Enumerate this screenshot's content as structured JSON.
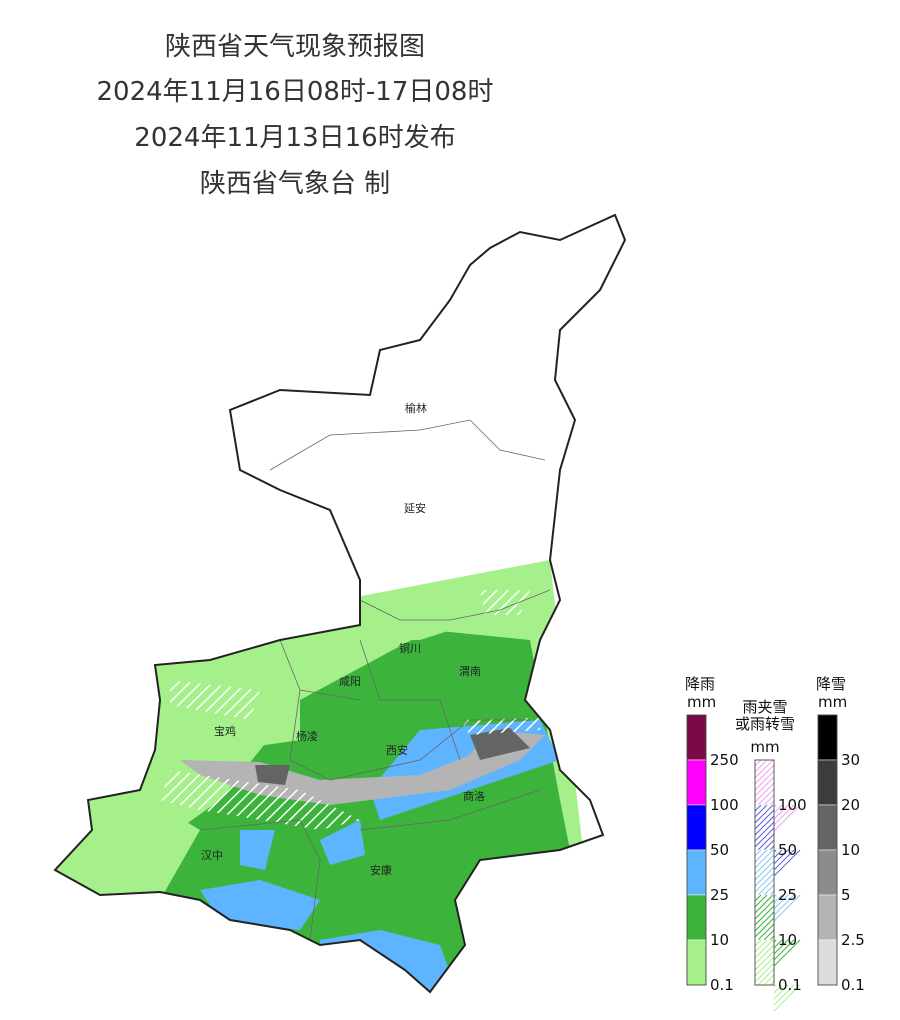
{
  "header": {
    "title": "陕西省天气现象预报图",
    "period": "2024年11月16日08时-17日08时",
    "issued": "2024年11月13日16时发布",
    "producer": "陕西省气象台 制"
  },
  "cities": [
    {
      "name": "榆林"
    },
    {
      "name": "延安"
    },
    {
      "name": "铜川"
    },
    {
      "name": "咸阳"
    },
    {
      "name": "渭南"
    },
    {
      "name": "宝鸡"
    },
    {
      "name": "杨凌"
    },
    {
      "name": "西安"
    },
    {
      "name": "商洛"
    },
    {
      "name": "汉中"
    },
    {
      "name": "安康"
    }
  ],
  "legends": [
    {
      "title": "降雨",
      "unit": "mm",
      "colors": [
        "#7a0a45",
        "#ff00ff",
        "#0000ff",
        "#5fb4ff",
        "#3cb43c",
        "#a6f08c"
      ],
      "hatched": false,
      "ticks": [
        "250",
        "100",
        "50",
        "25",
        "10",
        "0.1"
      ]
    },
    {
      "title": "雨夹雪\n或雨转雪",
      "unit": "mm",
      "colors": [
        "#f0a0f0",
        "#6060e0",
        "#8cc8f0",
        "#3cb43c",
        "#a6f08c"
      ],
      "hatched": true,
      "ticks": [
        "100",
        "50",
        "25",
        "10",
        "0.1"
      ]
    },
    {
      "title": "降雪",
      "unit": "mm",
      "colors": [
        "#000000",
        "#3c3c3c",
        "#646464",
        "#8c8c8c",
        "#b4b4b4",
        "#dcdcdc"
      ],
      "hatched": false,
      "ticks": [
        "30",
        "20",
        "10",
        "5",
        "2.5",
        "0.1"
      ]
    }
  ]
}
